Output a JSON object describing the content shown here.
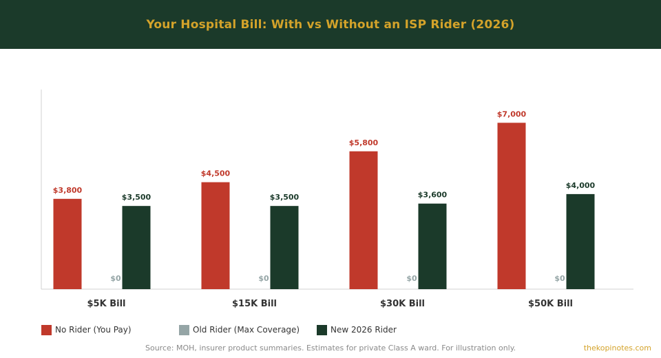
{
  "header": {
    "title": "Your Hospital Bill: With vs Without an ISP Rider (2026)"
  },
  "colors": {
    "header_bg": "#1b3a2a",
    "title": "#d4a32a",
    "no_rider": "#c0392b",
    "old_rider": "#95a5a6",
    "new_rider": "#1b3a2a"
  },
  "chart_data": {
    "type": "bar",
    "title": "Your Hospital Bill: With vs Without an ISP Rider (2026)",
    "categories": [
      "$5K Bill",
      "$15K Bill",
      "$30K Bill",
      "$50K Bill"
    ],
    "series": [
      {
        "name": "No Rider (You Pay)",
        "color": "#c0392b",
        "values": [
          3800,
          4500,
          5800,
          7000
        ],
        "labels": [
          "$3,800",
          "$4,500",
          "$5,800",
          "$7,000"
        ]
      },
      {
        "name": "Old Rider (Max Coverage)",
        "color": "#95a5a6",
        "values": [
          0,
          0,
          0,
          0
        ],
        "labels": [
          "$0",
          "$0",
          "$0",
          "$0"
        ]
      },
      {
        "name": "New 2026 Rider",
        "color": "#1b3a2a",
        "values": [
          3500,
          3500,
          3600,
          4000
        ],
        "labels": [
          "$3,500",
          "$3,500",
          "$3,600",
          "$4,000"
        ]
      }
    ],
    "ylim": [
      0,
      8400
    ],
    "grid": false,
    "legend_position": "bottom-left"
  },
  "legend": [
    {
      "label": "No Rider (You Pay)",
      "color": "#c0392b"
    },
    {
      "label": "Old Rider (Max Coverage)",
      "color": "#95a5a6"
    },
    {
      "label": "New 2026 Rider",
      "color": "#1b3a2a"
    }
  ],
  "footer": {
    "source": "Source: MOH, insurer product summaries. Estimates for private Class A ward. For illustration only.",
    "brand": "thekopinotes.com"
  }
}
